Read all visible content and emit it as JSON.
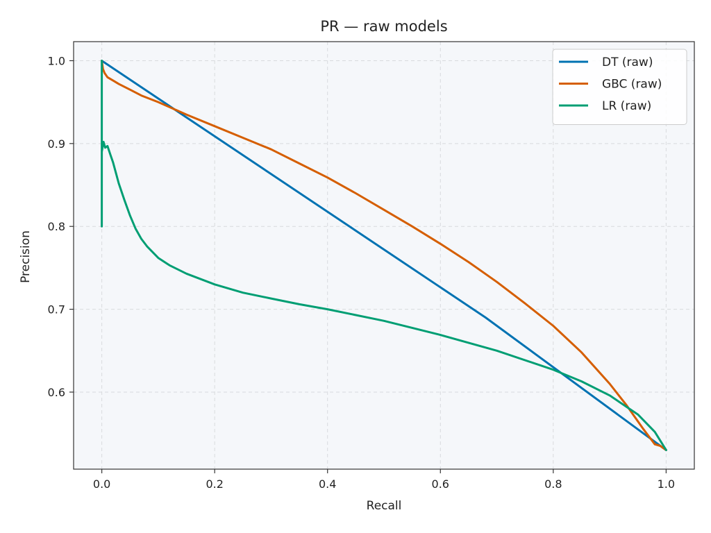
{
  "chart_data": {
    "type": "line",
    "title": "PR — raw models",
    "xlabel": "Recall",
    "ylabel": "Precision",
    "xlim": [
      -0.05,
      1.05
    ],
    "ylim": [
      0.507,
      1.023
    ],
    "xticks": [
      0.0,
      0.2,
      0.4,
      0.6,
      0.8,
      1.0
    ],
    "xtick_labels": [
      "0.0",
      "0.2",
      "0.4",
      "0.6",
      "0.8",
      "1.0"
    ],
    "yticks": [
      0.6,
      0.7,
      0.8,
      0.9,
      1.0
    ],
    "ytick_labels": [
      "0.6",
      "0.7",
      "0.8",
      "0.9",
      "1.0"
    ],
    "grid": true,
    "legend_position": "top-right",
    "background": "#f5f7fa",
    "series": [
      {
        "name": "DT (raw)",
        "color": "#0072b2",
        "x": [
          0.0,
          0.68,
          1.0
        ],
        "y": [
          1.0,
          0.69,
          0.53
        ]
      },
      {
        "name": "GBC (raw)",
        "color": "#d55e00",
        "x": [
          0.0,
          0.002,
          0.005,
          0.01,
          0.02,
          0.03,
          0.05,
          0.07,
          0.1,
          0.15,
          0.2,
          0.25,
          0.3,
          0.35,
          0.4,
          0.45,
          0.5,
          0.55,
          0.6,
          0.65,
          0.7,
          0.75,
          0.8,
          0.85,
          0.9,
          0.93,
          0.96,
          0.98,
          0.99,
          1.0
        ],
        "y": [
          1.0,
          0.99,
          0.985,
          0.98,
          0.976,
          0.972,
          0.965,
          0.958,
          0.95,
          0.935,
          0.921,
          0.907,
          0.893,
          0.876,
          0.859,
          0.84,
          0.82,
          0.8,
          0.779,
          0.757,
          0.733,
          0.707,
          0.68,
          0.648,
          0.61,
          0.584,
          0.555,
          0.537,
          0.535,
          0.53
        ]
      },
      {
        "name": "LR (raw)",
        "color": "#009e73",
        "x": [
          0.0,
          0.0,
          0.0,
          0.0,
          0.003,
          0.006,
          0.01,
          0.015,
          0.02,
          0.03,
          0.04,
          0.05,
          0.06,
          0.07,
          0.08,
          0.1,
          0.12,
          0.15,
          0.2,
          0.25,
          0.3,
          0.35,
          0.4,
          0.5,
          0.6,
          0.7,
          0.8,
          0.85,
          0.9,
          0.95,
          0.98,
          1.0
        ],
        "y": [
          1.0,
          0.8,
          0.9,
          0.89,
          0.902,
          0.895,
          0.897,
          0.887,
          0.877,
          0.852,
          0.832,
          0.813,
          0.797,
          0.785,
          0.776,
          0.762,
          0.753,
          0.743,
          0.73,
          0.72,
          0.713,
          0.706,
          0.7,
          0.686,
          0.669,
          0.65,
          0.627,
          0.613,
          0.596,
          0.573,
          0.552,
          0.53
        ]
      }
    ]
  }
}
